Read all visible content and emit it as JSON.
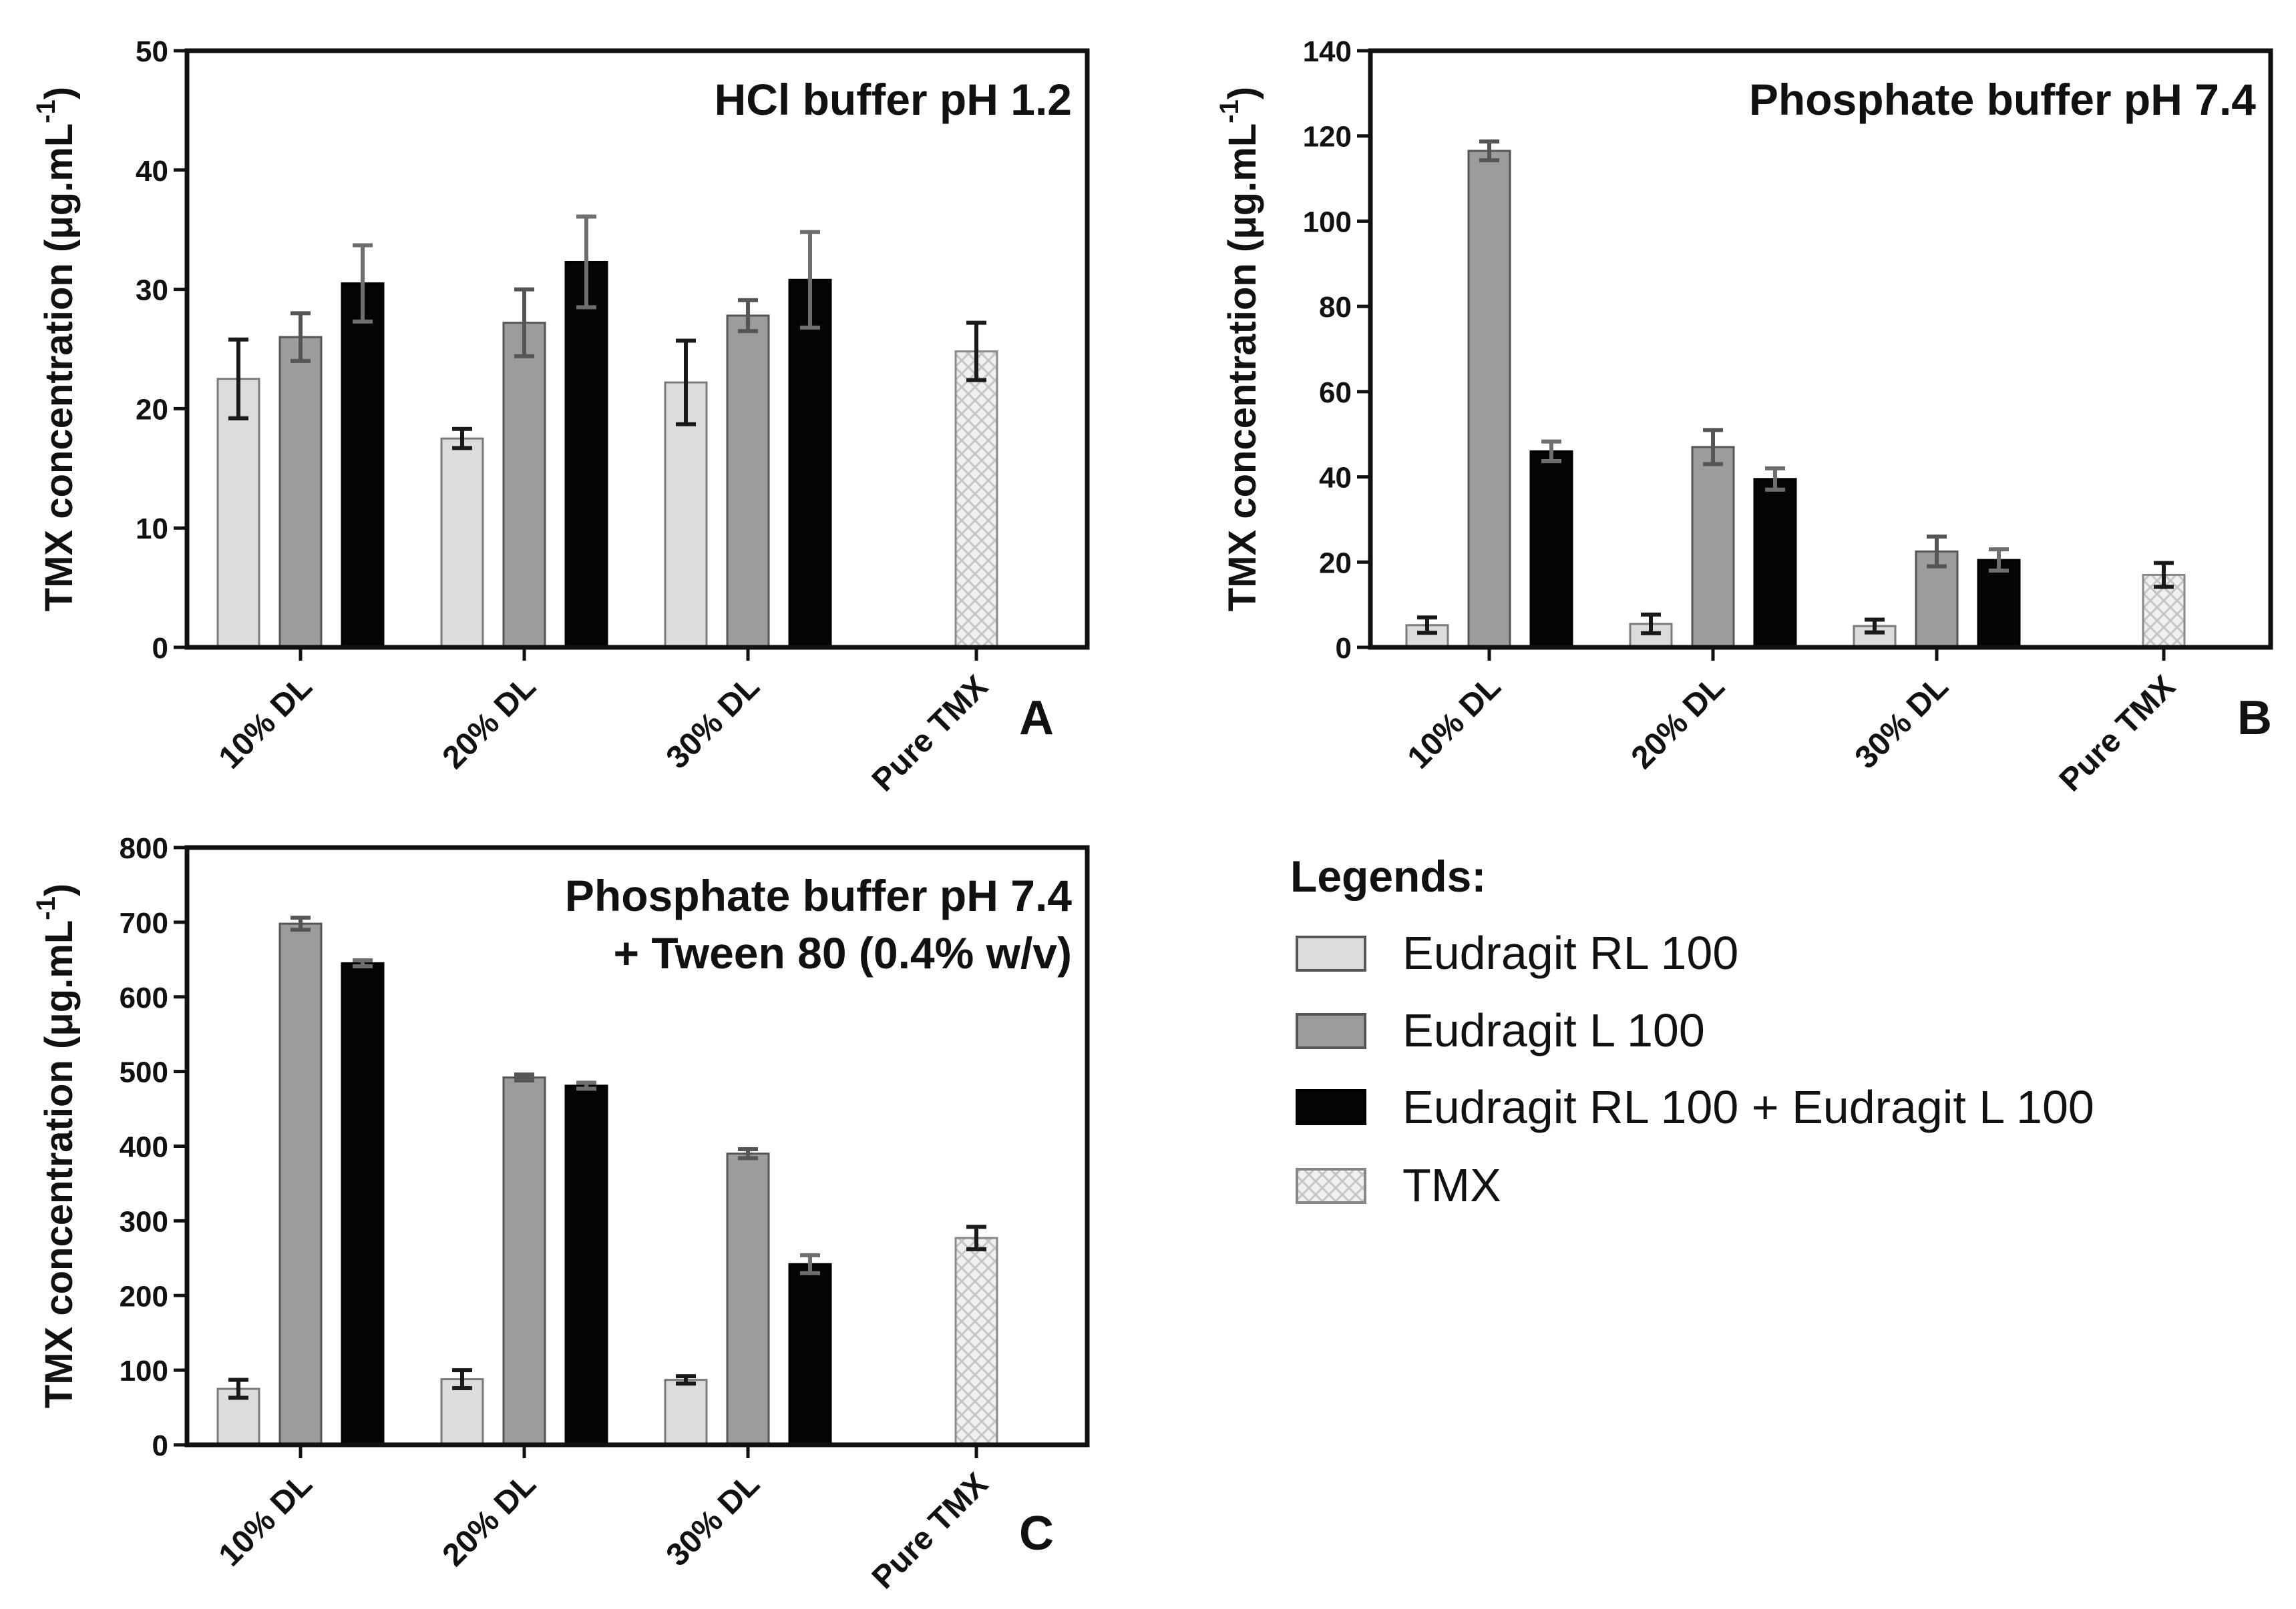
{
  "series_styles": [
    {
      "name": "Eudragit RL 100",
      "fill": "#dcdcdc",
      "stroke": "#7a7a7a",
      "err": "#1a1a1a",
      "pattern": false
    },
    {
      "name": "Eudragit L 100",
      "fill": "#9c9c9c",
      "stroke": "#555555",
      "err": "#555555",
      "pattern": false
    },
    {
      "name": "Eudragit RL 100 + Eudragit L 100",
      "fill": "#050505",
      "stroke": "#000000",
      "err": "#6e6e6e",
      "pattern": false
    },
    {
      "name": "TMX",
      "fill": "#f0f0f0",
      "stroke": "#888888",
      "err": "#1a1a1a",
      "pattern": true
    }
  ],
  "legend": {
    "heading": "Legends:",
    "items": [
      "Eudragit RL 100",
      "Eudragit L 100",
      "Eudragit RL 100 + Eudragit L 100",
      "TMX"
    ]
  },
  "chart_data": [
    {
      "panel": "A",
      "type": "bar",
      "title": [
        "HCl buffer pH 1.2"
      ],
      "ylabel": "TMX concentration (μg.mL",
      "ylabel_sup": "-1",
      "ylabel_close": ")",
      "xlabel": "",
      "ylim": [
        0,
        50
      ],
      "yticks": [
        0,
        10,
        20,
        30,
        40,
        50
      ],
      "categories": [
        "10% DL",
        "20% DL",
        "30% DL",
        "Pure TMX"
      ],
      "series": [
        {
          "name": "Eudragit RL 100",
          "values": [
            22.5,
            17.5,
            22.2,
            null
          ],
          "errors": [
            3.3,
            0.8,
            3.5,
            null
          ]
        },
        {
          "name": "Eudragit L 100",
          "values": [
            26,
            27.2,
            27.8,
            null
          ],
          "errors": [
            2,
            2.8,
            1.3,
            null
          ]
        },
        {
          "name": "Eudragit RL 100 + Eudragit L 100",
          "values": [
            30.5,
            32.3,
            30.8,
            null
          ],
          "errors": [
            3.2,
            3.8,
            4,
            null
          ]
        },
        {
          "name": "TMX",
          "values": [
            null,
            null,
            null,
            24.8
          ],
          "errors": [
            null,
            null,
            null,
            2.4
          ]
        }
      ]
    },
    {
      "panel": "B",
      "type": "bar",
      "title": [
        "Phosphate buffer pH 7.4"
      ],
      "ylabel": "TMX concentration (μg.mL",
      "ylabel_sup": "-1",
      "ylabel_close": ")",
      "xlabel": "",
      "ylim": [
        0,
        140
      ],
      "yticks": [
        0,
        20,
        40,
        60,
        80,
        100,
        120,
        140
      ],
      "categories": [
        "10% DL",
        "20% DL",
        "30% DL",
        "Pure TMX"
      ],
      "series": [
        {
          "name": "Eudragit RL 100",
          "values": [
            5.2,
            5.5,
            5.0,
            null
          ],
          "errors": [
            1.8,
            2.2,
            1.5,
            null
          ]
        },
        {
          "name": "Eudragit L 100",
          "values": [
            116.5,
            47,
            22.5,
            null
          ],
          "errors": [
            2.2,
            4,
            3.5,
            null
          ]
        },
        {
          "name": "Eudragit RL 100 + Eudragit L 100",
          "values": [
            46,
            39.5,
            20.5,
            null
          ],
          "errors": [
            2.3,
            2.5,
            2.5,
            null
          ]
        },
        {
          "name": "TMX",
          "values": [
            null,
            null,
            null,
            17
          ],
          "errors": [
            null,
            null,
            null,
            2.8
          ]
        }
      ]
    },
    {
      "panel": "C",
      "type": "bar",
      "title": [
        "Phosphate buffer pH 7.4",
        "+ Tween 80 (0.4% w/v)"
      ],
      "ylabel": "TMX concentration (μg.mL",
      "ylabel_sup": "-1",
      "ylabel_close": ")",
      "xlabel": "",
      "ylim": [
        0,
        800
      ],
      "yticks": [
        0,
        100,
        200,
        300,
        400,
        500,
        600,
        700,
        800
      ],
      "categories": [
        "10% DL",
        "20% DL",
        "30% DL",
        "Pure TMX"
      ],
      "series": [
        {
          "name": "Eudragit RL 100",
          "values": [
            75,
            88,
            87,
            null
          ],
          "errors": [
            12,
            12,
            5,
            null
          ]
        },
        {
          "name": "Eudragit L 100",
          "values": [
            698,
            492,
            390,
            null
          ],
          "errors": [
            8,
            4,
            6,
            null
          ]
        },
        {
          "name": "Eudragit RL 100 + Eudragit L 100",
          "values": [
            645,
            481,
            242,
            null
          ],
          "errors": [
            4,
            4,
            12,
            null
          ]
        },
        {
          "name": "TMX",
          "values": [
            null,
            null,
            null,
            277
          ],
          "errors": [
            null,
            null,
            null,
            15
          ]
        }
      ]
    }
  ]
}
